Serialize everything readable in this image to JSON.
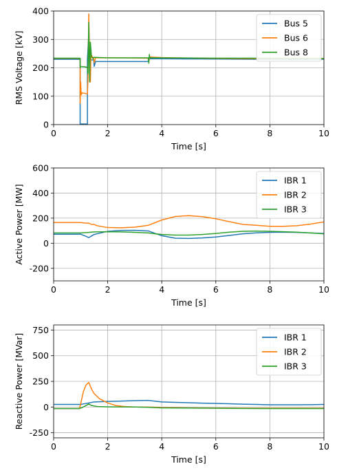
{
  "chart_data": [
    {
      "type": "line",
      "title": "",
      "xlabel": "Time [s]",
      "ylabel": "RMS Voltage [kV]",
      "xlim": [
        0,
        10
      ],
      "ylim": [
        0,
        400
      ],
      "xticks": [
        0,
        2,
        4,
        6,
        8,
        10
      ],
      "yticks": [
        0,
        100,
        200,
        300,
        400
      ],
      "grid": true,
      "legend_position": "top-right",
      "series": [
        {
          "name": "Bus 5",
          "color": "#1f77b4",
          "points": [
            [
              0,
              230
            ],
            [
              0.98,
              230
            ],
            [
              0.98,
              2
            ],
            [
              1.25,
              2
            ],
            [
              1.25,
              230
            ],
            [
              1.3,
              320
            ],
            [
              1.34,
              230
            ],
            [
              1.4,
              228
            ],
            [
              1.48,
              228
            ],
            [
              1.5,
              205
            ],
            [
              1.55,
              222
            ],
            [
              1.6,
              222
            ],
            [
              3.5,
              222
            ],
            [
              3.55,
              232
            ],
            [
              6,
              231
            ],
            [
              8,
              230
            ],
            [
              10,
              230
            ]
          ]
        },
        {
          "name": "Bus 6",
          "color": "#ff7f0e",
          "points": [
            [
              0,
              233
            ],
            [
              0.98,
              233
            ],
            [
              0.98,
              75
            ],
            [
              1.0,
              150
            ],
            [
              1.02,
              105
            ],
            [
              1.05,
              112
            ],
            [
              1.25,
              108
            ],
            [
              1.27,
              160
            ],
            [
              1.3,
              390
            ],
            [
              1.33,
              230
            ],
            [
              1.36,
              150
            ],
            [
              1.38,
              250
            ],
            [
              1.42,
              240
            ],
            [
              1.48,
              235
            ],
            [
              1.5,
              218
            ],
            [
              1.55,
              235
            ],
            [
              2,
              235
            ],
            [
              3.5,
              234
            ],
            [
              3.53,
              226
            ],
            [
              3.56,
              238
            ],
            [
              4,
              236
            ],
            [
              6,
              233
            ],
            [
              8,
              232
            ],
            [
              10,
              232
            ]
          ]
        },
        {
          "name": "Bus 8",
          "color": "#2ca02c",
          "points": [
            [
              0,
              234
            ],
            [
              0.98,
              234
            ],
            [
              0.98,
              200
            ],
            [
              1.0,
              205
            ],
            [
              1.2,
              203
            ],
            [
              1.25,
              200
            ],
            [
              1.27,
              180
            ],
            [
              1.3,
              360
            ],
            [
              1.33,
              150
            ],
            [
              1.36,
              290
            ],
            [
              1.4,
              238
            ],
            [
              1.45,
              233
            ],
            [
              1.5,
              237
            ],
            [
              2,
              235
            ],
            [
              3,
              235
            ],
            [
              3.5,
              235
            ],
            [
              3.52,
              216
            ],
            [
              3.54,
              247
            ],
            [
              3.56,
              235
            ],
            [
              4,
              235
            ],
            [
              6,
              234
            ],
            [
              8,
              234
            ],
            [
              10,
              233
            ]
          ]
        }
      ]
    },
    {
      "type": "line",
      "title": "",
      "xlabel": "Time [s]",
      "ylabel": "Active Power [MW]",
      "xlim": [
        0,
        10
      ],
      "ylim": [
        -300,
        600
      ],
      "xticks": [
        0,
        2,
        4,
        6,
        8,
        10
      ],
      "yticks": [
        -200,
        0,
        200,
        400,
        600
      ],
      "grid": true,
      "legend_position": "top-right",
      "series": [
        {
          "name": "IBR 1",
          "color": "#1f77b4",
          "points": [
            [
              0,
              72
            ],
            [
              1.0,
              72
            ],
            [
              1.2,
              55
            ],
            [
              1.3,
              45
            ],
            [
              1.5,
              70
            ],
            [
              2,
              95
            ],
            [
              2.5,
              102
            ],
            [
              3,
              103
            ],
            [
              3.5,
              98
            ],
            [
              4,
              60
            ],
            [
              4.5,
              40
            ],
            [
              5,
              38
            ],
            [
              5.5,
              42
            ],
            [
              6,
              50
            ],
            [
              6.5,
              62
            ],
            [
              7,
              75
            ],
            [
              7.5,
              83
            ],
            [
              8,
              87
            ],
            [
              8.5,
              88
            ],
            [
              9,
              86
            ],
            [
              9.5,
              82
            ],
            [
              10,
              78
            ]
          ]
        },
        {
          "name": "IBR 2",
          "color": "#ff7f0e",
          "points": [
            [
              0,
              165
            ],
            [
              1.0,
              165
            ],
            [
              1.2,
              160
            ],
            [
              1.3,
              160
            ],
            [
              1.4,
              150
            ],
            [
              1.5,
              150
            ],
            [
              1.6,
              140
            ],
            [
              2,
              125
            ],
            [
              2.5,
              123
            ],
            [
              3,
              128
            ],
            [
              3.5,
              143
            ],
            [
              4,
              185
            ],
            [
              4.5,
              213
            ],
            [
              5,
              220
            ],
            [
              5.5,
              212
            ],
            [
              6,
              195
            ],
            [
              6.5,
              172
            ],
            [
              7,
              150
            ],
            [
              7.5,
              143
            ],
            [
              8,
              135
            ],
            [
              8.5,
              135
            ],
            [
              9,
              140
            ],
            [
              9.5,
              153
            ],
            [
              10,
              170
            ]
          ]
        },
        {
          "name": "IBR 3",
          "color": "#2ca02c",
          "points": [
            [
              0,
              82
            ],
            [
              1.0,
              82
            ],
            [
              1.2,
              85
            ],
            [
              1.5,
              90
            ],
            [
              2,
              92
            ],
            [
              2.5,
              90
            ],
            [
              3,
              87
            ],
            [
              3.5,
              82
            ],
            [
              4,
              70
            ],
            [
              4.5,
              65
            ],
            [
              5,
              65
            ],
            [
              5.5,
              70
            ],
            [
              6,
              78
            ],
            [
              6.5,
              88
            ],
            [
              7,
              95
            ],
            [
              7.5,
              97
            ],
            [
              8,
              95
            ],
            [
              8.5,
              92
            ],
            [
              9,
              88
            ],
            [
              9.5,
              82
            ],
            [
              10,
              75
            ]
          ]
        }
      ]
    },
    {
      "type": "line",
      "title": "",
      "xlabel": "Time [s]",
      "ylabel": "Reactive Power [MVar]",
      "xlim": [
        0,
        10
      ],
      "ylim": [
        -300,
        800
      ],
      "xticks": [
        0,
        2,
        4,
        6,
        8,
        10
      ],
      "yticks": [
        -250,
        0,
        250,
        500,
        750
      ],
      "grid": true,
      "legend_position": "top-right",
      "series": [
        {
          "name": "IBR 1",
          "color": "#1f77b4",
          "points": [
            [
              0,
              25
            ],
            [
              1.0,
              25
            ],
            [
              1.2,
              35
            ],
            [
              1.5,
              50
            ],
            [
              2,
              55
            ],
            [
              2.5,
              58
            ],
            [
              3,
              62
            ],
            [
              3.5,
              65
            ],
            [
              4,
              50
            ],
            [
              4.5,
              45
            ],
            [
              5,
              42
            ],
            [
              5.5,
              38
            ],
            [
              6,
              35
            ],
            [
              6.5,
              32
            ],
            [
              7,
              28
            ],
            [
              7.5,
              25
            ],
            [
              8,
              22
            ],
            [
              8.5,
              22
            ],
            [
              9,
              22
            ],
            [
              9.5,
              23
            ],
            [
              10,
              25
            ]
          ]
        },
        {
          "name": "IBR 2",
          "color": "#ff7f0e",
          "points": [
            [
              0,
              -15
            ],
            [
              0.95,
              -15
            ],
            [
              1.0,
              30
            ],
            [
              1.1,
              150
            ],
            [
              1.2,
              215
            ],
            [
              1.3,
              240
            ],
            [
              1.4,
              175
            ],
            [
              1.5,
              130
            ],
            [
              1.7,
              80
            ],
            [
              2,
              40
            ],
            [
              2.3,
              15
            ],
            [
              2.6,
              5
            ],
            [
              3,
              0
            ],
            [
              3.5,
              0
            ],
            [
              4,
              -5
            ],
            [
              5,
              -8
            ],
            [
              6,
              -10
            ],
            [
              7,
              -12
            ],
            [
              8,
              -12
            ],
            [
              9,
              -12
            ],
            [
              10,
              -12
            ]
          ]
        },
        {
          "name": "IBR 3",
          "color": "#2ca02c",
          "points": [
            [
              0,
              -15
            ],
            [
              0.95,
              -15
            ],
            [
              1.05,
              -5
            ],
            [
              1.2,
              15
            ],
            [
              1.3,
              30
            ],
            [
              1.4,
              15
            ],
            [
              1.6,
              5
            ],
            [
              2,
              2
            ],
            [
              3,
              0
            ],
            [
              3.5,
              -2
            ],
            [
              4,
              -8
            ],
            [
              5,
              -10
            ],
            [
              6,
              -12
            ],
            [
              7,
              -14
            ],
            [
              8,
              -15
            ],
            [
              9,
              -15
            ],
            [
              10,
              -15
            ]
          ]
        }
      ]
    }
  ]
}
